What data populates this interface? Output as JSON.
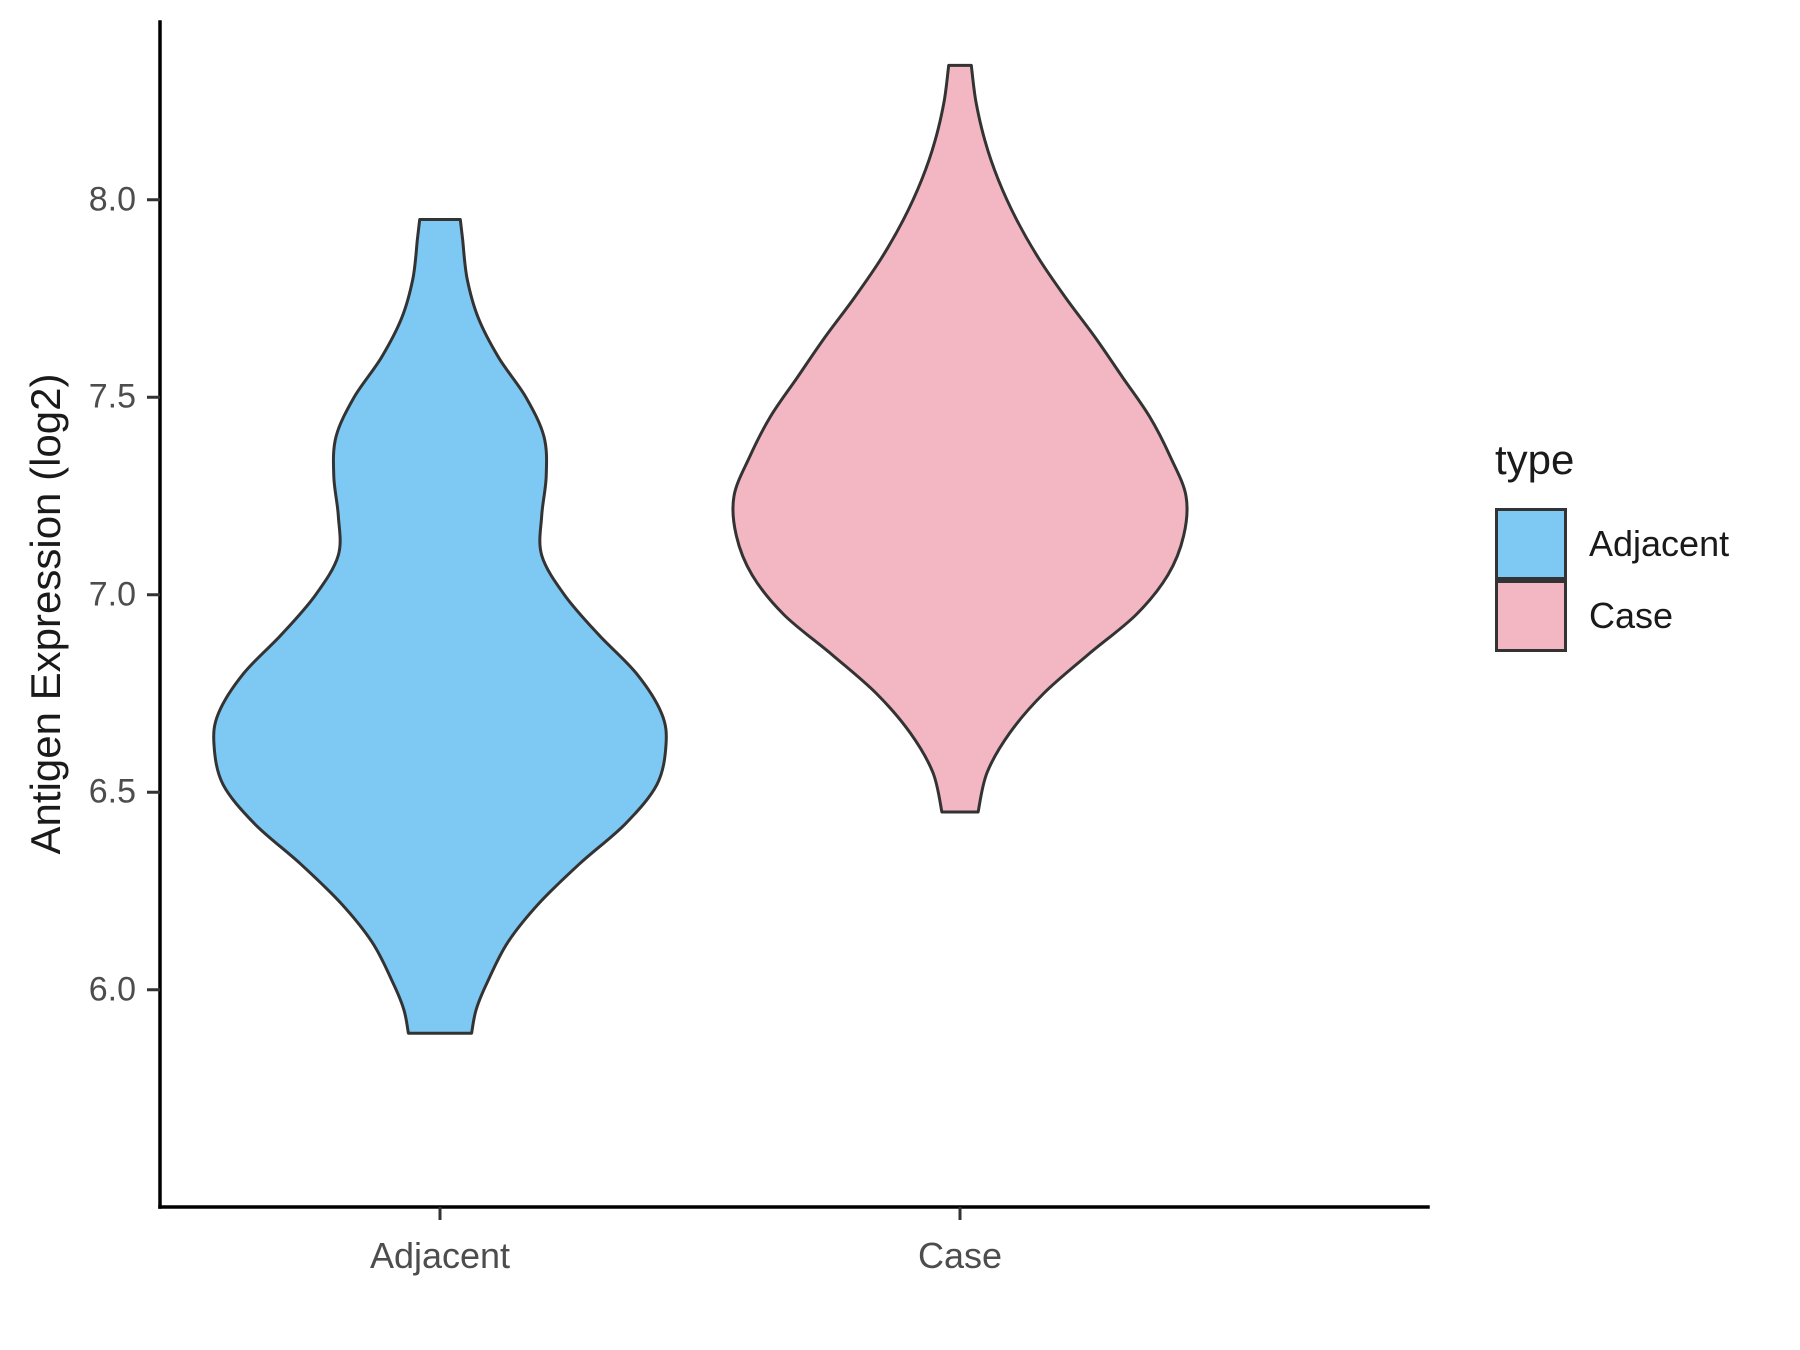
{
  "chart_data": {
    "type": "violin",
    "title": "",
    "xlabel": "",
    "ylabel": "Antigen Expression (log2)",
    "categories": [
      "Adjacent",
      "Case"
    ],
    "y_ticks": [
      6.0,
      6.5,
      7.0,
      7.5,
      8.0
    ],
    "y_tick_labels": [
      "6.0",
      "6.5",
      "7.0",
      "7.5",
      "8.0"
    ],
    "ylim": [
      5.45,
      8.45
    ],
    "grid": false,
    "background": "#FFFFFF",
    "axis_color": "#000000",
    "tick_label_color": "#4D4D4D",
    "text_color": "#1A1A1A",
    "legend": {
      "title": "type",
      "position": "right",
      "entries": [
        {
          "label": "Adjacent",
          "color": "#7EC9F3"
        },
        {
          "label": "Case",
          "color": "#F3B7C4"
        }
      ]
    },
    "series": [
      {
        "name": "Adjacent",
        "fill": "#7EC9F3",
        "stroke": "#333333",
        "min": 5.89,
        "max": 7.95,
        "widest_at": 6.62,
        "profile": [
          [
            7.95,
            0.09
          ],
          [
            7.9,
            0.1
          ],
          [
            7.8,
            0.12
          ],
          [
            7.7,
            0.17
          ],
          [
            7.6,
            0.26
          ],
          [
            7.5,
            0.38
          ],
          [
            7.4,
            0.46
          ],
          [
            7.3,
            0.47
          ],
          [
            7.2,
            0.45
          ],
          [
            7.1,
            0.45
          ],
          [
            7.0,
            0.55
          ],
          [
            6.9,
            0.7
          ],
          [
            6.8,
            0.87
          ],
          [
            6.7,
            0.98
          ],
          [
            6.62,
            1.0
          ],
          [
            6.52,
            0.96
          ],
          [
            6.42,
            0.82
          ],
          [
            6.32,
            0.62
          ],
          [
            6.22,
            0.44
          ],
          [
            6.12,
            0.3
          ],
          [
            6.02,
            0.21
          ],
          [
            5.95,
            0.16
          ],
          [
            5.89,
            0.14
          ]
        ]
      },
      {
        "name": "Case",
        "fill": "#F3B7C4",
        "stroke": "#333333",
        "min": 6.45,
        "max": 8.34,
        "widest_at": 7.25,
        "profile": [
          [
            8.34,
            0.05
          ],
          [
            8.25,
            0.07
          ],
          [
            8.15,
            0.11
          ],
          [
            8.05,
            0.17
          ],
          [
            7.95,
            0.25
          ],
          [
            7.85,
            0.35
          ],
          [
            7.75,
            0.47
          ],
          [
            7.65,
            0.6
          ],
          [
            7.55,
            0.72
          ],
          [
            7.45,
            0.84
          ],
          [
            7.35,
            0.93
          ],
          [
            7.25,
            1.0
          ],
          [
            7.15,
            0.99
          ],
          [
            7.05,
            0.92
          ],
          [
            6.95,
            0.78
          ],
          [
            6.85,
            0.57
          ],
          [
            6.75,
            0.37
          ],
          [
            6.65,
            0.22
          ],
          [
            6.55,
            0.12
          ],
          [
            6.45,
            0.08
          ]
        ]
      }
    ]
  }
}
